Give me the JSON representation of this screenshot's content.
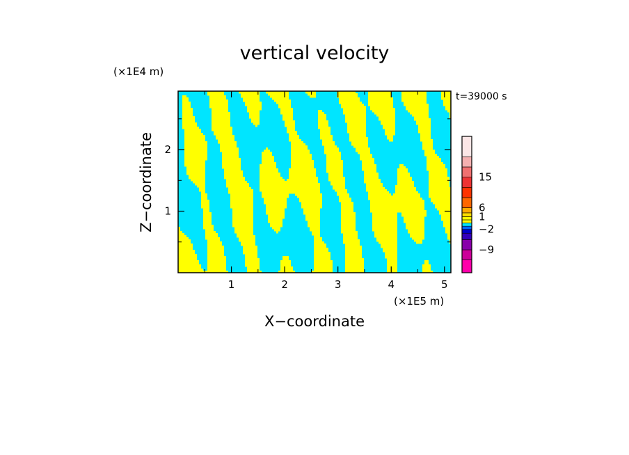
{
  "chart_data": {
    "type": "heatmap",
    "title": "vertical velocity",
    "time_label": "t=39000 s",
    "xlabel": "X−coordinate",
    "ylabel": "Z−coordinate",
    "x_unit": "(×1E5 m)",
    "z_unit": "(×1E4 m)",
    "xlim": [
      0,
      5.12
    ],
    "zlim": [
      0,
      2.95
    ],
    "x_ticks": [
      1,
      2,
      3,
      4,
      5
    ],
    "x_tick_labels": [
      "1",
      "2",
      "3",
      "4",
      "5"
    ],
    "z_ticks": [
      1,
      2
    ],
    "z_tick_labels": [
      "1",
      "2"
    ],
    "colors": {
      "positive": "#ffff00",
      "negative": "#00e5ff",
      "axis": "#000000"
    },
    "colorbar": {
      "segments": [
        {
          "color": "#ff00aa",
          "level": "< -9"
        },
        {
          "color": "#cc0099",
          "level": "-9 to -6"
        },
        {
          "color": "#8800aa",
          "level": "-6 to -4"
        },
        {
          "color": "#3300bb",
          "level": "-4 to -2"
        },
        {
          "color": "#0000cc",
          "level": "-2 to -1"
        },
        {
          "color": "#0066ff",
          "level": "-1 to -0.5"
        },
        {
          "color": "#00e5ff",
          "level": "-0.5 to 0"
        },
        {
          "color": "#ffff00",
          "level": "0 to 0.5"
        },
        {
          "color": "#ffff00",
          "level": "0.5 to 1"
        },
        {
          "color": "#ffdd00",
          "level": "1 to 2"
        },
        {
          "color": "#ffaa00",
          "level": "2 to 4"
        },
        {
          "color": "#ff6600",
          "level": "4 to 6"
        },
        {
          "color": "#ff3300",
          "level": "6 to 10"
        },
        {
          "color": "#ee3333",
          "level": "10 to 15"
        },
        {
          "color": "#f07070",
          "level": "15 to 20"
        },
        {
          "color": "#f4b0b0",
          "level": "20 to 25"
        },
        {
          "color": "#fbe6e6",
          "level": "> 25"
        }
      ],
      "tick_labels": [
        {
          "label": "15",
          "after_segment": 13
        },
        {
          "label": "6",
          "after_segment": 10
        },
        {
          "label": "1",
          "after_segment": 8
        },
        {
          "label": "−2",
          "after_segment": 4
        },
        {
          "label": "−9",
          "after_segment": 1
        }
      ]
    }
  }
}
